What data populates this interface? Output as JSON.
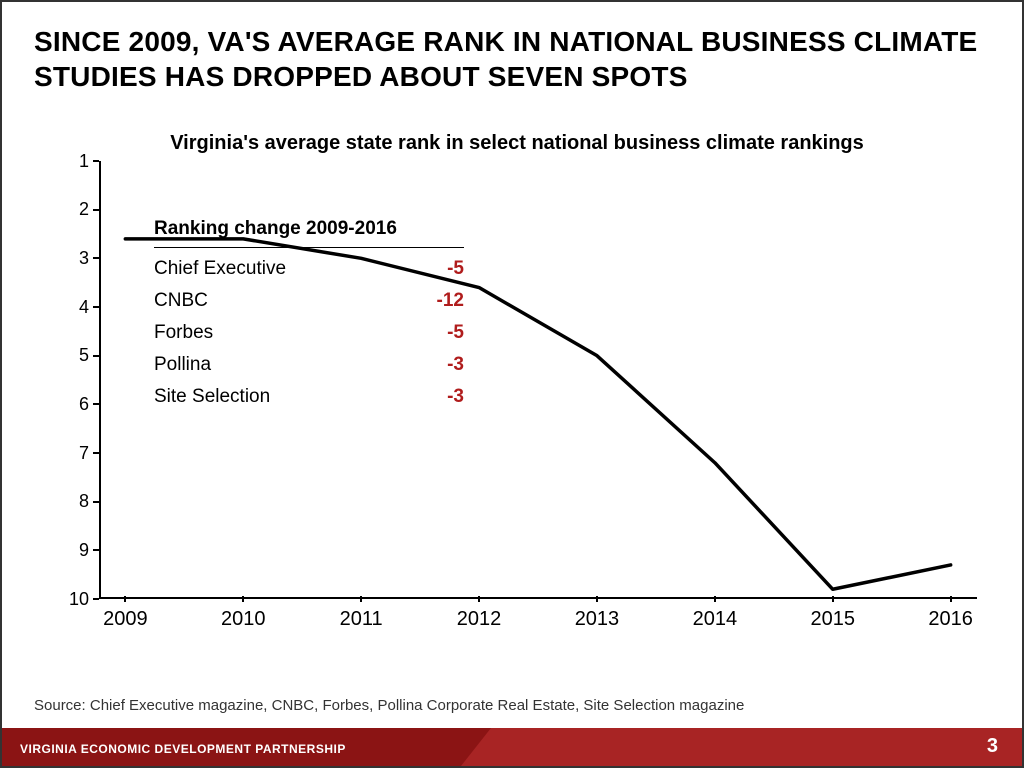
{
  "title": "SINCE 2009, VA'S AVERAGE RANK IN NATIONAL BUSINESS CLIMATE STUDIES HAS DROPPED ABOUT SEVEN SPOTS",
  "chart": {
    "type": "line",
    "title": "Virginia's average state rank in select national business climate rankings",
    "x": [
      2009,
      2010,
      2011,
      2012,
      2013,
      2014,
      2015,
      2016
    ],
    "y": [
      2.6,
      2.6,
      3.0,
      3.6,
      5.0,
      7.2,
      9.8,
      9.3
    ],
    "xlim": [
      2009,
      2016
    ],
    "ylim": [
      1,
      10
    ],
    "yticks": [
      1,
      2,
      3,
      4,
      5,
      6,
      7,
      8,
      9,
      10
    ],
    "xticks": [
      2009,
      2010,
      2011,
      2012,
      2013,
      2014,
      2015,
      2016
    ],
    "line_color": "#000000",
    "line_width": 3.5,
    "background_color": "#ffffff",
    "axis_color": "#000000",
    "label_fontsize": 18,
    "title_fontsize": 20
  },
  "annot": {
    "header": "Ranking change 2009-2016",
    "rows": [
      {
        "label": "Chief Executive",
        "value": "-5"
      },
      {
        "label": "CNBC",
        "value": "-12"
      },
      {
        "label": "Forbes",
        "value": "-5"
      },
      {
        "label": "Pollina",
        "value": "-3"
      },
      {
        "label": "Site Selection",
        "value": "-3"
      }
    ],
    "value_color": "#b01c1c"
  },
  "source": "Source: Chief Executive magazine, CNBC, Forbes, Pollina Corporate Real Estate, Site Selection magazine",
  "footer": {
    "text": "VIRGINIA ECONOMIC DEVELOPMENT PARTNERSHIP",
    "page": "3",
    "bg_left": "#8b1414",
    "bg_right": "#a82424",
    "text_color": "#ffffff"
  }
}
